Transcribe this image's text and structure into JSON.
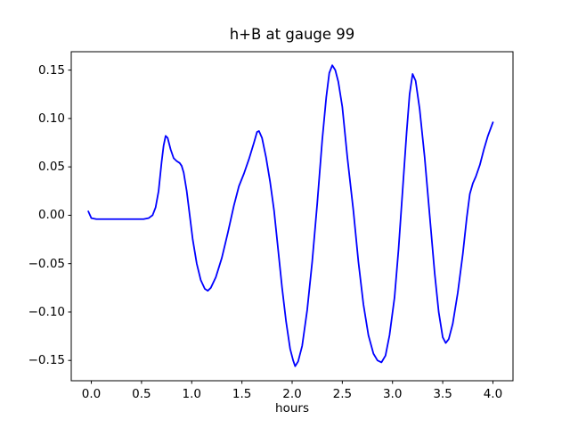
{
  "figure": {
    "background_color": "#ffffff",
    "frame_color": "#000000",
    "text_color": "#000000"
  },
  "chart_data": {
    "type": "line",
    "title": "h+B at gauge 99",
    "xlabel": "hours",
    "ylabel": "",
    "xlim": [
      -0.2,
      4.2
    ],
    "ylim": [
      -0.171,
      0.169
    ],
    "grid": false,
    "legend": null,
    "x_ticks": [
      0.0,
      0.5,
      1.0,
      1.5,
      2.0,
      2.5,
      3.0,
      3.5,
      4.0
    ],
    "x_tick_labels": [
      "0.0",
      "0.5",
      "1.0",
      "1.5",
      "2.0",
      "2.5",
      "3.0",
      "3.5",
      "4.0"
    ],
    "y_ticks": [
      0.15,
      0.1,
      0.05,
      0.0,
      -0.05,
      -0.1,
      -0.15
    ],
    "y_tick_labels": [
      "0.15",
      "0.10",
      "0.05",
      "0.00",
      "−0.05",
      "−0.10",
      "−0.15"
    ],
    "series": [
      {
        "name": "h+B",
        "color": "#0000ff",
        "line_width": 1.8,
        "x": [
          -0.03,
          0.0,
          0.05,
          0.15,
          0.25,
          0.35,
          0.45,
          0.52,
          0.57,
          0.61,
          0.64,
          0.67,
          0.7,
          0.72,
          0.74,
          0.76,
          0.79,
          0.82,
          0.85,
          0.88,
          0.9,
          0.92,
          0.95,
          0.98,
          1.01,
          1.05,
          1.09,
          1.13,
          1.16,
          1.19,
          1.24,
          1.3,
          1.36,
          1.42,
          1.47,
          1.52,
          1.57,
          1.62,
          1.65,
          1.67,
          1.7,
          1.74,
          1.78,
          1.82,
          1.86,
          1.9,
          1.94,
          1.98,
          2.01,
          2.03,
          2.06,
          2.1,
          2.15,
          2.2,
          2.25,
          2.3,
          2.34,
          2.37,
          2.4,
          2.43,
          2.46,
          2.5,
          2.55,
          2.61,
          2.66,
          2.71,
          2.76,
          2.81,
          2.85,
          2.89,
          2.93,
          2.97,
          3.02,
          3.06,
          3.1,
          3.14,
          3.17,
          3.2,
          3.23,
          3.27,
          3.32,
          3.37,
          3.42,
          3.46,
          3.5,
          3.53,
          3.56,
          3.6,
          3.65,
          3.7,
          3.74,
          3.77,
          3.8,
          3.83,
          3.87,
          3.91,
          3.95,
          4.0
        ],
        "y": [
          0.004,
          -0.003,
          -0.004,
          -0.004,
          -0.004,
          -0.004,
          -0.004,
          -0.004,
          -0.003,
          0.0,
          0.008,
          0.025,
          0.055,
          0.072,
          0.082,
          0.08,
          0.068,
          0.059,
          0.056,
          0.054,
          0.051,
          0.044,
          0.025,
          0.0,
          -0.025,
          -0.05,
          -0.067,
          -0.076,
          -0.078,
          -0.075,
          -0.064,
          -0.044,
          -0.018,
          0.01,
          0.03,
          0.043,
          0.058,
          0.075,
          0.086,
          0.087,
          0.08,
          0.06,
          0.035,
          0.005,
          -0.035,
          -0.075,
          -0.11,
          -0.138,
          -0.15,
          -0.156,
          -0.151,
          -0.135,
          -0.098,
          -0.048,
          0.012,
          0.078,
          0.122,
          0.147,
          0.155,
          0.15,
          0.138,
          0.112,
          0.06,
          0.005,
          -0.048,
          -0.092,
          -0.124,
          -0.143,
          -0.15,
          -0.152,
          -0.145,
          -0.124,
          -0.085,
          -0.035,
          0.025,
          0.085,
          0.125,
          0.146,
          0.139,
          0.11,
          0.06,
          0.0,
          -0.06,
          -0.1,
          -0.126,
          -0.132,
          -0.128,
          -0.112,
          -0.08,
          -0.04,
          -0.002,
          0.022,
          0.033,
          0.04,
          0.052,
          0.068,
          0.082,
          0.096
        ]
      }
    ]
  }
}
